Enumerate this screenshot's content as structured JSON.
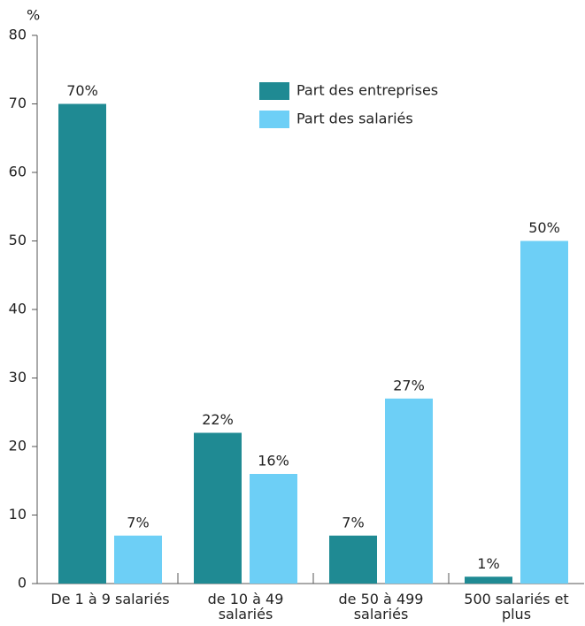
{
  "chart_data": {
    "type": "bar",
    "y_label": "%",
    "categories": [
      "De 1 à 9 salariés",
      "de 10 à 49 salariés",
      "de 50 à 499 salariés",
      "500 salariés et plus"
    ],
    "series": [
      {
        "name": "Part des entreprises",
        "color": "#1f8a93",
        "values": [
          70,
          22,
          7,
          1
        ],
        "value_labels": [
          "70%",
          "22%",
          "7%",
          "1%"
        ]
      },
      {
        "name": "Part des salariés",
        "color": "#6dcff6",
        "values": [
          7,
          16,
          27,
          50
        ],
        "value_labels": [
          "7%",
          "16%",
          "27%",
          "50%"
        ]
      }
    ],
    "ylim": [
      0,
      80
    ],
    "yticks": [
      0,
      10,
      20,
      30,
      40,
      50,
      60,
      70,
      80
    ],
    "grid": false,
    "legend": "top-right"
  }
}
